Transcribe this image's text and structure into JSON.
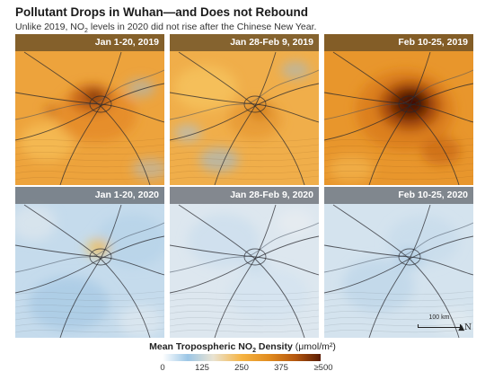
{
  "title": "Pollutant Drops in Wuhan—and Does not Rebound",
  "subtitle": {
    "before": "Unlike 2019, NO",
    "sub": "2",
    "after": " levels in 2020 did not rise after the Chinese New Year."
  },
  "panels": [
    {
      "label": "Jan 1-20, 2019",
      "year": "2019",
      "level": "high"
    },
    {
      "label": "Jan 28-Feb 9, 2019",
      "year": "2019",
      "level": "medium"
    },
    {
      "label": "Feb 10-25, 2019",
      "year": "2019",
      "level": "very-high"
    },
    {
      "label": "Jan 1-20, 2020",
      "year": "2020",
      "level": "low-moderate"
    },
    {
      "label": "Jan 28-Feb 9, 2020",
      "year": "2020",
      "level": "very-low"
    },
    {
      "label": "Feb 10-25, 2020",
      "year": "2020",
      "level": "low"
    }
  ],
  "scalebar": {
    "label": "100 km"
  },
  "north_arrow": {
    "label": "N"
  },
  "legend": {
    "title_main": "Mean Tropospheric NO",
    "title_sub": "2",
    "title_tail": " Density",
    "unit": "(μmol/m²)",
    "ticks": [
      "0",
      "125",
      "250",
      "375",
      "≥500"
    ],
    "colors": [
      "#ffffff",
      "#9cc6e6",
      "#e9e3d2",
      "#f6b443",
      "#e08a1e",
      "#b4570f",
      "#5a1c04"
    ]
  },
  "colors": {
    "orange_base": "#eea23a",
    "blue_base": "#cfe1ee",
    "hotspot_dark": "#4a1503",
    "label_bar_2019": "#5c4626",
    "label_bar_2020": "#60646a"
  }
}
